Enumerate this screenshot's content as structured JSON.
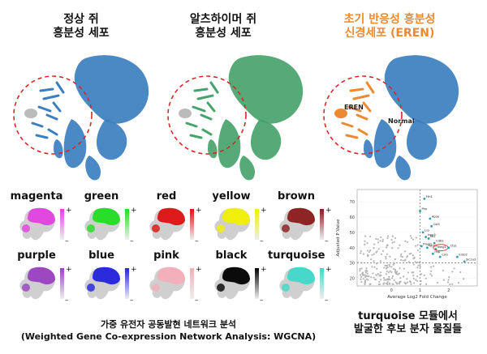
{
  "panels": [
    {
      "title_line1": "정상 쥐",
      "title_line2": "흥분성 세포",
      "color": "#3b7fbf"
    },
    {
      "title_line1": "알츠하이머 쥐",
      "title_line2": "흥분성 세포",
      "color": "#46a36b"
    },
    {
      "title_line1": "초기 반응성 흥분성",
      "title_line2": "신경세포 (EREN)",
      "color": "#3b7fbf",
      "accent": "#ec8a32"
    }
  ],
  "umap_labels": {
    "eren": "EREN",
    "normal": "Normal"
  },
  "modules": [
    {
      "name": "magenta",
      "color": "#e040e0"
    },
    {
      "name": "green",
      "color": "#22dd22"
    },
    {
      "name": "red",
      "color": "#dd1111"
    },
    {
      "name": "yellow",
      "color": "#f0f000"
    },
    {
      "name": "brown",
      "color": "#8a1a1a"
    },
    {
      "name": "purple",
      "color": "#9a40c0"
    },
    {
      "name": "blue",
      "color": "#2222dd"
    },
    {
      "name": "pink",
      "color": "#f4aeb8"
    },
    {
      "name": "black",
      "color": "#000000"
    },
    {
      "name": "turquoise",
      "color": "#40d8c8"
    }
  ],
  "scale_plus": "+",
  "scale_minus": "–",
  "wgcna_caption": {
    "line1": "가중 유전자 공동발현 네트워크 분석",
    "line2": "(Weighted Gene Co-expression Network Analysis: WGCNA)"
  },
  "volcano_caption": {
    "line1": "turquoise 모듈에서",
    "line2": "발굴한 후보 분자 물질들"
  },
  "chart_data": {
    "type": "scatter",
    "xlabel": "Average Log2 Fold Change",
    "ylabel": "Adjusted P Value",
    "xlim": [
      -1.2,
      3.0
    ],
    "ylim": [
      15,
      78
    ],
    "xticks": [
      0,
      1,
      2
    ],
    "yticks": [
      20,
      30,
      40,
      50,
      60,
      70
    ],
    "threshold_x": 1.0,
    "threshold_y": 30,
    "highlighted": [
      {
        "label": "Fth1",
        "x": 1.15,
        "y": 72
      },
      {
        "label": "Pkp",
        "x": 1.0,
        "y": 64
      },
      {
        "label": "Apoe",
        "x": 1.35,
        "y": 59
      },
      {
        "label": "Cst3",
        "x": 1.4,
        "y": 54
      },
      {
        "label": "Lrp",
        "x": 1.1,
        "y": 50
      },
      {
        "label": "Inpp5",
        "x": 1.2,
        "y": 47
      },
      {
        "label": "Mt1",
        "x": 1.3,
        "y": 46
      },
      {
        "label": "Cd63",
        "x": 1.5,
        "y": 43
      },
      {
        "label": "Plagl1",
        "x": 1.05,
        "y": 41
      },
      {
        "label": "Ntrk3",
        "x": 1.25,
        "y": 40
      },
      {
        "label": "Ntng1",
        "x": 1.55,
        "y": 39
      },
      {
        "label": "Hsp",
        "x": 1.45,
        "y": 36
      },
      {
        "label": "Col1",
        "x": 1.7,
        "y": 34
      },
      {
        "label": "Ctss",
        "x": 2.0,
        "y": 40
      },
      {
        "label": "Erbb2",
        "x": 2.3,
        "y": 34
      },
      {
        "label": "Slc1a3",
        "x": 2.55,
        "y": 31
      }
    ],
    "circled_label": "Ntng1"
  }
}
